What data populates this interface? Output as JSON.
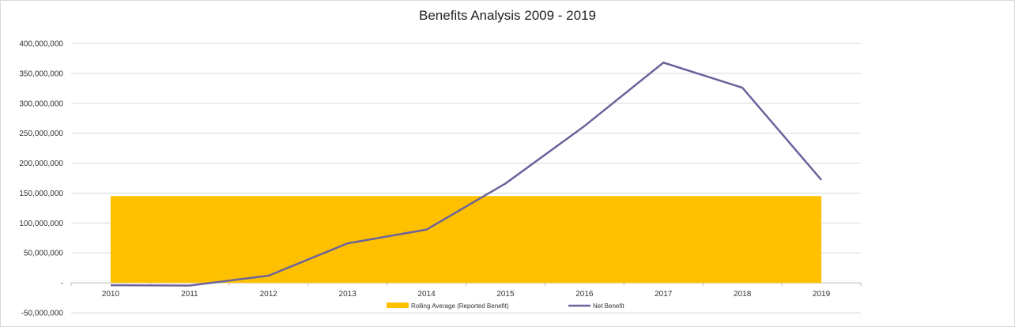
{
  "chart_data": {
    "type": "line",
    "title": "Benefits Analysis 2009 - 2019",
    "categories": [
      "2010",
      "2011",
      "2012",
      "2013",
      "2014",
      "2015",
      "2016",
      "2017",
      "2018",
      "2019"
    ],
    "series": [
      {
        "name": "Rolling Average (Reported Benefit)",
        "kind": "area",
        "color": "#FFC000",
        "values": [
          145000000,
          145000000,
          145000000,
          145000000,
          145000000,
          145000000,
          145000000,
          145000000,
          145000000,
          145000000
        ]
      },
      {
        "name": "Net Benefit",
        "kind": "line",
        "color": "#6B639C",
        "values": [
          -4000000,
          -4500000,
          12000000,
          66000000,
          89000000,
          166000000,
          262000000,
          368000000,
          326000000,
          172000000
        ]
      }
    ],
    "y_ticks": [
      {
        "value": 400000000,
        "label": "400,000,000"
      },
      {
        "value": 350000000,
        "label": "350,000,000"
      },
      {
        "value": 300000000,
        "label": "300,000,000"
      },
      {
        "value": 250000000,
        "label": "250,000,000"
      },
      {
        "value": 200000000,
        "label": "200,000,000"
      },
      {
        "value": 150000000,
        "label": "150,000,000"
      },
      {
        "value": 100000000,
        "label": "100,000,000"
      },
      {
        "value": 50000000,
        "label": "50,000,000"
      },
      {
        "value": 0,
        "label": "-"
      },
      {
        "value": -50000000,
        "label": "-50,000,000"
      }
    ],
    "ylim": [
      -50000000,
      400000000
    ],
    "xlabel": "",
    "ylabel": "",
    "grid": true,
    "legend": "bottom",
    "colors": {
      "grid": "#d9d9d9",
      "axis": "#bfbfbf"
    }
  }
}
